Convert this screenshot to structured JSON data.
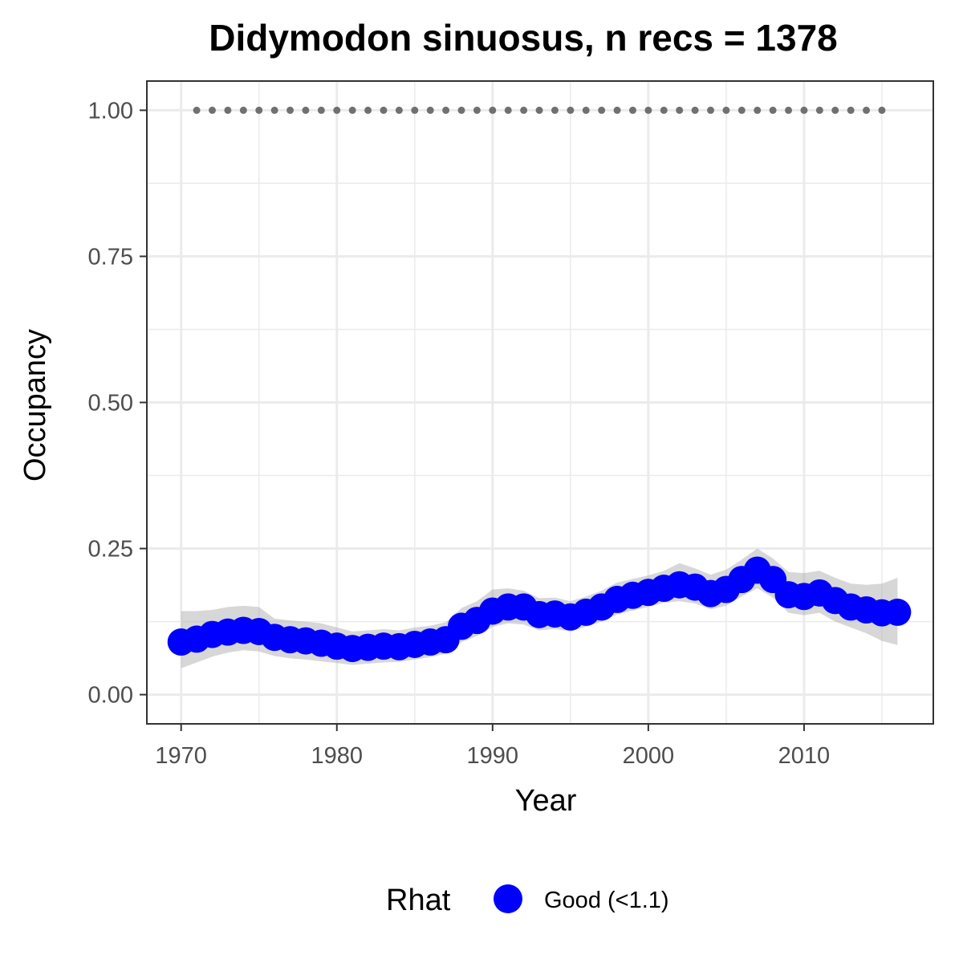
{
  "chart_data": {
    "type": "line",
    "title": "Didymodon sinuosus, n recs = 1378",
    "xlabel": "Year",
    "ylabel": "Occupancy",
    "xlim": [
      1967.8,
      2018.3
    ],
    "ylim": [
      -0.05,
      1.05
    ],
    "x_ticks": [
      1970,
      1980,
      1990,
      2000,
      2010
    ],
    "x_tick_labels": [
      "1970",
      "1980",
      "1990",
      "2000",
      "2010"
    ],
    "x_minor_ticks": [
      1975,
      1985,
      1995,
      2005,
      2015
    ],
    "y_ticks": [
      0,
      0.25,
      0.5,
      0.75,
      1.0
    ],
    "y_tick_labels": [
      "0.00",
      "0.25",
      "0.50",
      "0.75",
      "1.00"
    ],
    "y_minor_ticks": [
      0.125,
      0.375,
      0.625,
      0.875
    ],
    "grid": true,
    "legend": {
      "title": "Rhat",
      "position": "bottom",
      "entries": [
        {
          "label": "Good (<1.1)",
          "color": "#0000ff"
        }
      ]
    },
    "series": [
      {
        "name": "Good (<1.1)",
        "color": "#0000ff",
        "x": [
          1970,
          1971,
          1972,
          1973,
          1974,
          1975,
          1976,
          1977,
          1978,
          1979,
          1980,
          1981,
          1982,
          1983,
          1984,
          1985,
          1986,
          1987,
          1988,
          1989,
          1990,
          1991,
          1992,
          1993,
          1994,
          1995,
          1996,
          1997,
          1998,
          1999,
          2000,
          2001,
          2002,
          2003,
          2004,
          2005,
          2006,
          2007,
          2008,
          2009,
          2010,
          2011,
          2012,
          2013,
          2014,
          2015,
          2016
        ],
        "values": [
          0.09,
          0.095,
          0.103,
          0.107,
          0.11,
          0.108,
          0.098,
          0.094,
          0.092,
          0.088,
          0.083,
          0.079,
          0.081,
          0.083,
          0.082,
          0.086,
          0.09,
          0.094,
          0.117,
          0.127,
          0.143,
          0.15,
          0.15,
          0.137,
          0.138,
          0.133,
          0.141,
          0.15,
          0.163,
          0.17,
          0.175,
          0.182,
          0.188,
          0.184,
          0.173,
          0.18,
          0.197,
          0.213,
          0.197,
          0.171,
          0.168,
          0.174,
          0.161,
          0.15,
          0.145,
          0.14,
          0.141
        ],
        "ci_lower": [
          0.045,
          0.055,
          0.065,
          0.072,
          0.076,
          0.074,
          0.066,
          0.062,
          0.06,
          0.057,
          0.054,
          0.051,
          0.053,
          0.055,
          0.056,
          0.06,
          0.064,
          0.07,
          0.09,
          0.1,
          0.116,
          0.122,
          0.12,
          0.11,
          0.112,
          0.108,
          0.116,
          0.125,
          0.137,
          0.144,
          0.15,
          0.157,
          0.16,
          0.156,
          0.146,
          0.152,
          0.168,
          0.182,
          0.166,
          0.14,
          0.136,
          0.14,
          0.125,
          0.115,
          0.105,
          0.092,
          0.085
        ],
        "ci_upper": [
          0.143,
          0.143,
          0.145,
          0.15,
          0.152,
          0.15,
          0.13,
          0.127,
          0.125,
          0.122,
          0.115,
          0.108,
          0.11,
          0.112,
          0.11,
          0.115,
          0.118,
          0.124,
          0.148,
          0.16,
          0.18,
          0.182,
          0.178,
          0.165,
          0.166,
          0.16,
          0.168,
          0.178,
          0.192,
          0.198,
          0.204,
          0.212,
          0.225,
          0.216,
          0.205,
          0.214,
          0.231,
          0.25,
          0.233,
          0.21,
          0.208,
          0.212,
          0.2,
          0.19,
          0.188,
          0.19,
          0.2
        ]
      }
    ],
    "reference_points": {
      "color": "#707070",
      "x": [
        1971,
        1972,
        1973,
        1974,
        1975,
        1976,
        1977,
        1978,
        1979,
        1980,
        1981,
        1982,
        1983,
        1984,
        1985,
        1986,
        1987,
        1988,
        1989,
        1990,
        1991,
        1992,
        1993,
        1994,
        1995,
        1996,
        1997,
        1998,
        1999,
        2000,
        2001,
        2002,
        2003,
        2004,
        2005,
        2006,
        2007,
        2008,
        2009,
        2010,
        2011,
        2012,
        2013,
        2014,
        2015
      ],
      "value": 1.0
    }
  }
}
